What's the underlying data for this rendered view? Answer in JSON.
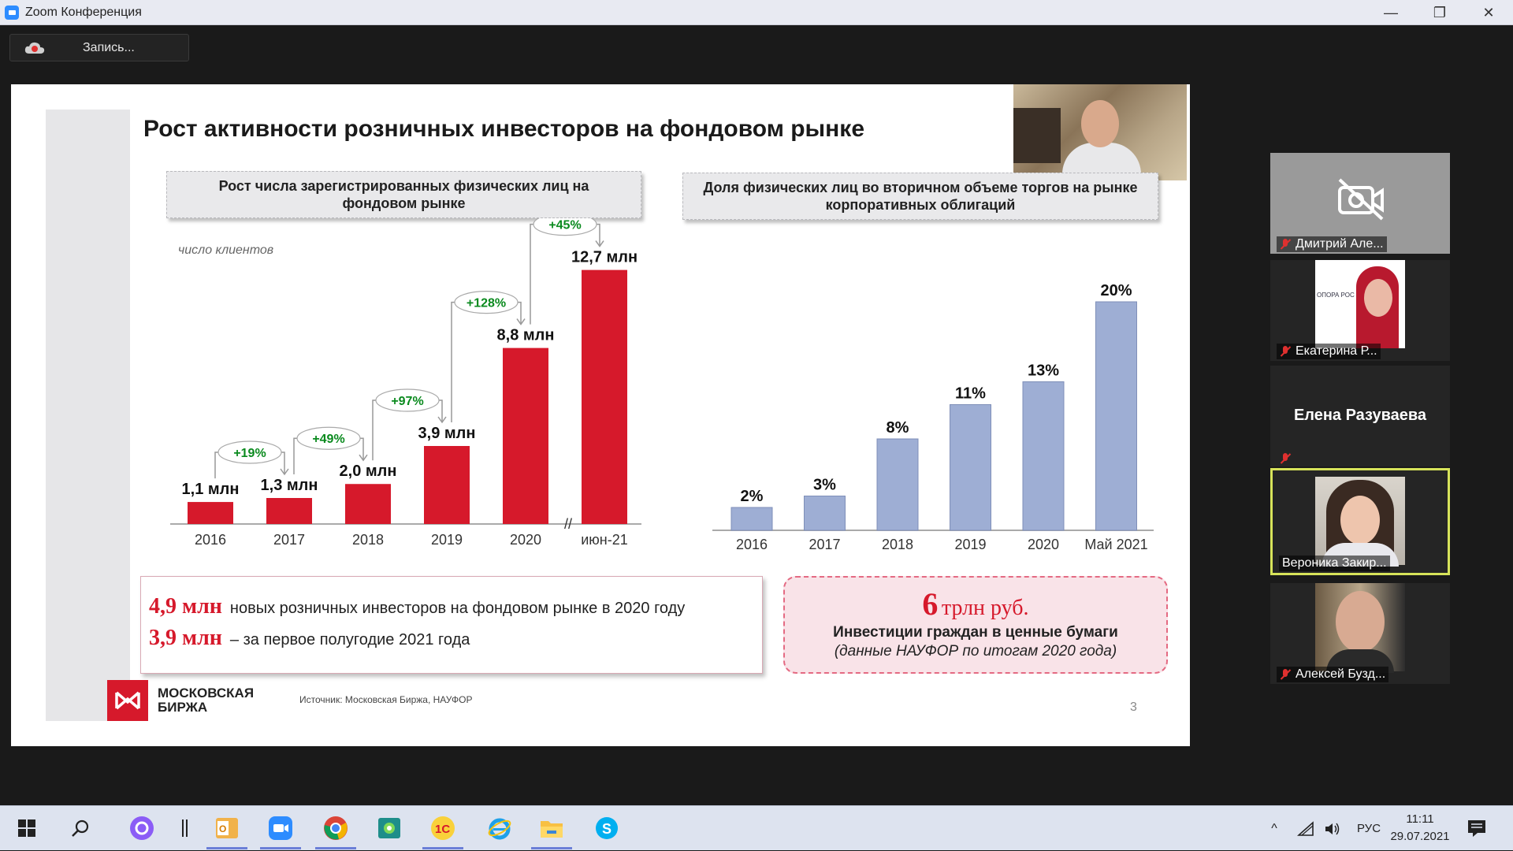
{
  "window": {
    "title": "Zoom Конференция",
    "minimize": "—",
    "maximize": "❐",
    "close": "✕"
  },
  "toolbar": {
    "record_label": "Запись..."
  },
  "slide": {
    "title": "Рост активности розничных инвесторов на фондовом рынке",
    "chart1_header": "Рост числа зарегистрированных физических лиц на фондовом рынке",
    "chart2_header": "Доля физических лиц во вторичном объеме торгов на рынке корпоративных облигаций",
    "chart1_unit": "число клиентов",
    "info_lines": [
      {
        "number": "4,9 млн",
        "text": "новых розничных инвесторов на фондовом рынке в 2020 году"
      },
      {
        "number": "3,9 млн",
        "text": "– за первое полугодие 2021 года"
      }
    ],
    "highlight": {
      "number": "6",
      "unit": "трлн руб.",
      "subtitle": "Инвестиции граждан в ценные бумаги",
      "note": "(данные НАУФОР по итогам 2020 года)"
    },
    "logo_line1": "МОСКОВСКАЯ",
    "logo_line2": "БИРЖА",
    "source": "Источник: Московская Биржа, НАУФОР",
    "page_number": "3"
  },
  "chart_data": [
    {
      "type": "bar",
      "title": "Рост числа зарегистрированных физических лиц на фондовом рынке",
      "ylabel": "число клиентов",
      "categories": [
        "2016",
        "2017",
        "2018",
        "2019",
        "2020",
        "июн-21"
      ],
      "values": [
        1.1,
        1.3,
        2.0,
        3.9,
        8.8,
        12.7
      ],
      "labels": [
        "1,1 млн",
        "1,3 млн",
        "2,0 млн",
        "3,9 млн",
        "8,8 млн",
        "12,7 млн"
      ],
      "growth": [
        {
          "from": 0,
          "to": 1,
          "label": "+19%"
        },
        {
          "from": 1,
          "to": 2,
          "label": "+49%"
        },
        {
          "from": 2,
          "to": 3,
          "label": "+97%"
        },
        {
          "from": 3,
          "to": 4,
          "label": "+128%"
        },
        {
          "from": 4,
          "to": 5,
          "label": "+45%"
        }
      ],
      "axis_break": "//",
      "color": "#d6192b",
      "ylim": [
        0,
        13
      ]
    },
    {
      "type": "bar",
      "title": "Доля физических лиц во вторичном объеме торгов на рынке корпоративных облигаций",
      "categories": [
        "2016",
        "2017",
        "2018",
        "2019",
        "2020",
        "Май 2021"
      ],
      "values": [
        2,
        3,
        8,
        11,
        13,
        20
      ],
      "labels": [
        "2%",
        "3%",
        "8%",
        "11%",
        "13%",
        "20%"
      ],
      "color": "#9eaed4",
      "ylim": [
        0,
        20
      ]
    }
  ],
  "participants": [
    {
      "name": "Дмитрий Але...",
      "video": false,
      "muted": true
    },
    {
      "name": "Екатерина Р...",
      "video": true,
      "muted": true
    },
    {
      "name": "Елена Разуваева",
      "video": false,
      "muted": true
    },
    {
      "name": "Вероника Закир...",
      "video": true,
      "muted": false,
      "active_speaker": true
    },
    {
      "name": "Алексей Бузд...",
      "video": true,
      "muted": true
    }
  ],
  "participant_logo_text": "ОПОРА РОС",
  "taskbar": {
    "language": "РУС",
    "time": "11:11",
    "date": "29.07.2021"
  }
}
